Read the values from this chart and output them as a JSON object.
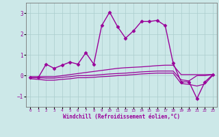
{
  "background_color": "#cce8e8",
  "grid_color": "#aacccc",
  "line_color": "#990099",
  "marker_color": "#990099",
  "xlabel": "Windchill (Refroidissement éolien,°C)",
  "xlim": [
    -0.5,
    23.5
  ],
  "ylim": [
    -1.5,
    3.5
  ],
  "yticks": [
    -1,
    0,
    1,
    2,
    3
  ],
  "xticks": [
    0,
    1,
    2,
    3,
    4,
    5,
    6,
    7,
    8,
    9,
    10,
    11,
    12,
    13,
    14,
    15,
    16,
    17,
    18,
    19,
    20,
    21,
    22,
    23
  ],
  "series": [
    {
      "x": [
        0,
        1,
        2,
        3,
        4,
        5,
        6,
        7,
        8,
        9,
        10,
        11,
        12,
        13,
        14,
        15,
        16,
        17,
        18,
        19,
        20,
        21,
        22,
        23
      ],
      "y": [
        -0.1,
        -0.1,
        0.55,
        0.35,
        0.5,
        0.65,
        0.55,
        1.1,
        0.55,
        2.4,
        3.05,
        2.35,
        1.8,
        2.15,
        2.6,
        2.6,
        2.65,
        2.4,
        0.6,
        -0.3,
        -0.3,
        -1.1,
        -0.3,
        0.05
      ],
      "marker": "D",
      "markersize": 2.5,
      "linewidth": 1.0
    },
    {
      "x": [
        0,
        1,
        2,
        3,
        4,
        5,
        6,
        7,
        8,
        9,
        10,
        11,
        12,
        13,
        14,
        15,
        16,
        17,
        18,
        19,
        20,
        21,
        22,
        23
      ],
      "y": [
        -0.05,
        -0.05,
        -0.05,
        -0.05,
        0.0,
        0.05,
        0.1,
        0.15,
        0.2,
        0.25,
        0.3,
        0.35,
        0.38,
        0.4,
        0.42,
        0.45,
        0.48,
        0.5,
        0.5,
        0.05,
        0.05,
        0.05,
        0.05,
        0.05
      ],
      "marker": null,
      "markersize": 0,
      "linewidth": 0.9
    },
    {
      "x": [
        0,
        1,
        2,
        3,
        4,
        5,
        6,
        7,
        8,
        9,
        10,
        11,
        12,
        13,
        14,
        15,
        16,
        17,
        18,
        19,
        20,
        21,
        22,
        23
      ],
      "y": [
        -0.1,
        -0.1,
        -0.12,
        -0.12,
        -0.08,
        -0.05,
        0.0,
        0.0,
        0.02,
        0.05,
        0.08,
        0.1,
        0.12,
        0.15,
        0.18,
        0.2,
        0.22,
        0.22,
        0.22,
        -0.2,
        -0.25,
        0.0,
        0.0,
        0.05
      ],
      "marker": null,
      "markersize": 0,
      "linewidth": 0.9
    },
    {
      "x": [
        0,
        1,
        2,
        3,
        4,
        5,
        6,
        7,
        8,
        9,
        10,
        11,
        12,
        13,
        14,
        15,
        16,
        17,
        18,
        19,
        20,
        21,
        22,
        23
      ],
      "y": [
        -0.15,
        -0.18,
        -0.22,
        -0.22,
        -0.18,
        -0.15,
        -0.1,
        -0.1,
        -0.08,
        -0.05,
        -0.03,
        0.0,
        0.02,
        0.05,
        0.08,
        0.1,
        0.12,
        0.12,
        0.12,
        -0.38,
        -0.42,
        -0.5,
        -0.4,
        0.02
      ],
      "marker": null,
      "markersize": 0,
      "linewidth": 0.9
    }
  ]
}
